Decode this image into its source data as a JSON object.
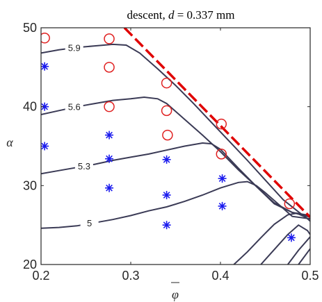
{
  "chart_data": {
    "type": "scatter",
    "title": "descent, d = 0.337 mm",
    "title_parts": {
      "prefix": "descent, ",
      "var": "d",
      "rest": " = 0.337 mm"
    },
    "xlabel": "φ",
    "ylabel": "α",
    "xlim": [
      0.2,
      0.5
    ],
    "ylim": [
      20,
      50
    ],
    "xticks": [
      0.2,
      0.3,
      0.4,
      0.5
    ],
    "yticks": [
      20,
      30,
      40,
      50
    ],
    "xtick_labels": [
      "0.2",
      "0.3",
      "0.4",
      "0.5"
    ],
    "ytick_labels": [
      "20",
      "30",
      "40",
      "50"
    ],
    "grid": false,
    "colors": {
      "contour": "#3a3a55",
      "boundary": "#e00000",
      "circle": "#e02020",
      "star": "#1a1aee",
      "axis": "#262626"
    },
    "contours": [
      {
        "label": "5.9",
        "label_x": 0.237,
        "label_y": 47.5,
        "points": [
          [
            0.2,
            46.8
          ],
          [
            0.22,
            47.2
          ],
          [
            0.24,
            47.5
          ],
          [
            0.26,
            47.7
          ],
          [
            0.28,
            47.9
          ],
          [
            0.295,
            47.8
          ],
          [
            0.31,
            46.8
          ],
          [
            0.33,
            44.8
          ],
          [
            0.35,
            42.7
          ],
          [
            0.37,
            40.4
          ],
          [
            0.39,
            38.0
          ],
          [
            0.41,
            35.6
          ],
          [
            0.43,
            33.2
          ],
          [
            0.45,
            30.7
          ],
          [
            0.47,
            28.2
          ],
          [
            0.49,
            26.4
          ],
          [
            0.5,
            26.0
          ]
        ]
      },
      {
        "label": "5.6",
        "label_x": 0.237,
        "label_y": 40.0,
        "points": [
          [
            0.2,
            39.0
          ],
          [
            0.22,
            39.5
          ],
          [
            0.24,
            40.0
          ],
          [
            0.26,
            40.4
          ],
          [
            0.28,
            40.8
          ],
          [
            0.3,
            41.0
          ],
          [
            0.315,
            41.2
          ],
          [
            0.33,
            41.0
          ],
          [
            0.34,
            40.4
          ],
          [
            0.36,
            38.4
          ],
          [
            0.38,
            36.4
          ],
          [
            0.4,
            34.3
          ],
          [
            0.42,
            32.0
          ],
          [
            0.44,
            29.9
          ],
          [
            0.46,
            27.7
          ],
          [
            0.48,
            26.6
          ],
          [
            0.5,
            26.2
          ]
        ]
      },
      {
        "label": "5.3",
        "label_x": 0.248,
        "label_y": 32.5,
        "points": [
          [
            0.2,
            31.5
          ],
          [
            0.22,
            31.9
          ],
          [
            0.24,
            32.3
          ],
          [
            0.26,
            32.7
          ],
          [
            0.28,
            33.2
          ],
          [
            0.3,
            33.6
          ],
          [
            0.32,
            34.0
          ],
          [
            0.34,
            34.5
          ],
          [
            0.36,
            35.0
          ],
          [
            0.38,
            35.4
          ],
          [
            0.39,
            35.3
          ],
          [
            0.4,
            34.6
          ],
          [
            0.42,
            32.2
          ],
          [
            0.44,
            29.9
          ],
          [
            0.46,
            27.8
          ],
          [
            0.48,
            26.6
          ],
          [
            0.5,
            26.0
          ]
        ]
      },
      {
        "label": "5",
        "label_x": 0.254,
        "label_y": 25.3,
        "points": [
          [
            0.2,
            24.6
          ],
          [
            0.22,
            24.7
          ],
          [
            0.24,
            24.9
          ],
          [
            0.26,
            25.3
          ],
          [
            0.28,
            25.7
          ],
          [
            0.3,
            26.2
          ],
          [
            0.32,
            26.8
          ],
          [
            0.34,
            27.3
          ],
          [
            0.36,
            28.0
          ],
          [
            0.38,
            28.8
          ],
          [
            0.4,
            29.7
          ],
          [
            0.42,
            30.4
          ],
          [
            0.43,
            30.5
          ],
          [
            0.44,
            30.0
          ],
          [
            0.45,
            29.1
          ],
          [
            0.46,
            28.1
          ],
          [
            0.47,
            27.1
          ],
          [
            0.48,
            26.1
          ],
          [
            0.5,
            25.8
          ]
        ]
      },
      {
        "label": "",
        "points": [
          [
            0.415,
            20
          ],
          [
            0.43,
            21.6
          ],
          [
            0.445,
            23.4
          ],
          [
            0.46,
            25.1
          ],
          [
            0.475,
            26.3
          ],
          [
            0.485,
            26.5
          ],
          [
            0.495,
            26.0
          ],
          [
            0.5,
            25.5
          ]
        ]
      },
      {
        "label": "",
        "points": [
          [
            0.445,
            20
          ],
          [
            0.46,
            21.9
          ],
          [
            0.475,
            23.8
          ],
          [
            0.487,
            25.0
          ],
          [
            0.497,
            24.3
          ],
          [
            0.5,
            23.8
          ]
        ]
      },
      {
        "label": "",
        "points": [
          [
            0.475,
            20
          ],
          [
            0.487,
            21.8
          ],
          [
            0.5,
            23.5
          ]
        ]
      },
      {
        "label": "",
        "points": [
          [
            0.487,
            20
          ],
          [
            0.5,
            22.0
          ]
        ]
      }
    ],
    "boundary": {
      "name": "",
      "points": [
        [
          0.293,
          50
        ],
        [
          0.5,
          26
        ]
      ]
    },
    "circles": [
      [
        0.204,
        48.7
      ],
      [
        0.276,
        48.6
      ],
      [
        0.276,
        45.0
      ],
      [
        0.276,
        40.0
      ],
      [
        0.34,
        43.0
      ],
      [
        0.34,
        39.5
      ],
      [
        0.341,
        36.4
      ],
      [
        0.401,
        37.8
      ],
      [
        0.401,
        34.0
      ],
      [
        0.477,
        27.7
      ]
    ],
    "stars": [
      [
        0.204,
        45.1
      ],
      [
        0.204,
        40.0
      ],
      [
        0.204,
        35.0
      ],
      [
        0.276,
        36.4
      ],
      [
        0.276,
        33.4
      ],
      [
        0.276,
        29.7
      ],
      [
        0.34,
        33.3
      ],
      [
        0.34,
        28.8
      ],
      [
        0.34,
        25.0
      ],
      [
        0.402,
        30.9
      ],
      [
        0.402,
        27.4
      ],
      [
        0.479,
        23.4
      ]
    ]
  }
}
